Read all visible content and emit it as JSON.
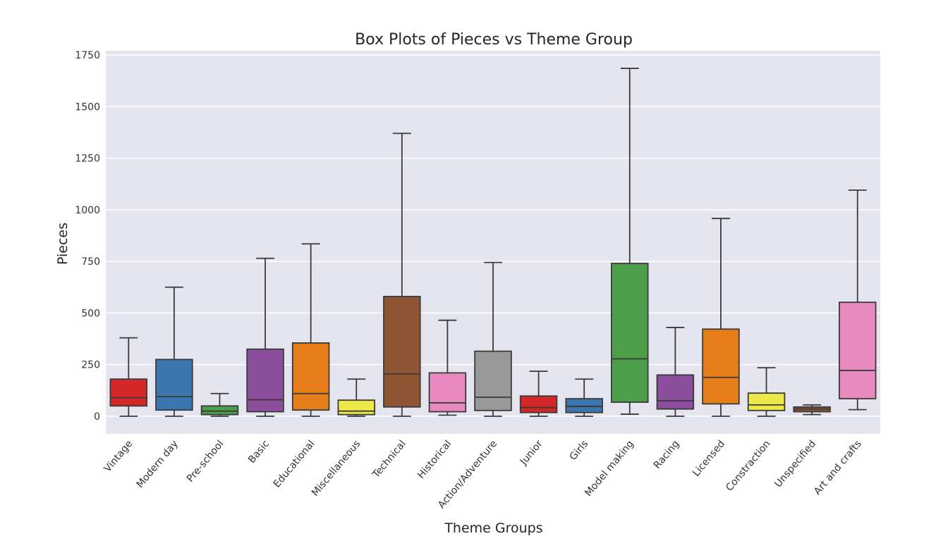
{
  "chart_data": {
    "type": "box",
    "title": "Box Plots of Pieces vs Theme Group",
    "xlabel": "Theme Groups",
    "ylabel": "Pieces",
    "ylim": [
      -80,
      1760
    ],
    "yticks": [
      0,
      250,
      500,
      750,
      1000,
      1250,
      1500,
      1750
    ],
    "grid": true,
    "categories": [
      "Vintage",
      "Modern day",
      "Pre-school",
      "Basic",
      "Educational",
      "Miscellaneous",
      "Technical",
      "Historical",
      "Action/Adventure",
      "Junior",
      "Girls",
      "Model making",
      "Racing",
      "Licensed",
      "Constraction",
      "Unspecified",
      "Art and crafts"
    ],
    "colors": [
      "#d62728",
      "#3b76af",
      "#4c9f48",
      "#8c4e9c",
      "#e67e1a",
      "#ece847",
      "#8f5533",
      "#e889c0",
      "#999999",
      "#d62728",
      "#3b76af",
      "#4c9f48",
      "#8c4e9c",
      "#e67e1a",
      "#ece847",
      "#8f5533",
      "#e889c0"
    ],
    "boxes": [
      {
        "whisker_low": 0,
        "q1": 50,
        "median": 90,
        "q3": 180,
        "whisker_high": 380
      },
      {
        "whisker_low": 0,
        "q1": 30,
        "median": 95,
        "q3": 275,
        "whisker_high": 625
      },
      {
        "whisker_low": 0,
        "q1": 8,
        "median": 25,
        "q3": 50,
        "whisker_high": 110
      },
      {
        "whisker_low": 0,
        "q1": 22,
        "median": 80,
        "q3": 325,
        "whisker_high": 765
      },
      {
        "whisker_low": 0,
        "q1": 30,
        "median": 110,
        "q3": 355,
        "whisker_high": 835
      },
      {
        "whisker_low": 0,
        "q1": 8,
        "median": 25,
        "q3": 78,
        "whisker_high": 180
      },
      {
        "whisker_low": 0,
        "q1": 45,
        "median": 205,
        "q3": 580,
        "whisker_high": 1370
      },
      {
        "whisker_low": 5,
        "q1": 22,
        "median": 65,
        "q3": 210,
        "whisker_high": 465
      },
      {
        "whisker_low": 0,
        "q1": 28,
        "median": 92,
        "q3": 315,
        "whisker_high": 745
      },
      {
        "whisker_low": 0,
        "q1": 18,
        "median": 42,
        "q3": 98,
        "whisker_high": 218
      },
      {
        "whisker_low": 0,
        "q1": 18,
        "median": 48,
        "q3": 85,
        "whisker_high": 180
      },
      {
        "whisker_low": 10,
        "q1": 68,
        "median": 278,
        "q3": 740,
        "whisker_high": 1685
      },
      {
        "whisker_low": 0,
        "q1": 35,
        "median": 75,
        "q3": 200,
        "whisker_high": 430
      },
      {
        "whisker_low": 0,
        "q1": 60,
        "median": 188,
        "q3": 422,
        "whisker_high": 958
      },
      {
        "whisker_low": 0,
        "q1": 28,
        "median": 55,
        "q3": 112,
        "whisker_high": 235
      },
      {
        "whisker_low": 8,
        "q1": 22,
        "median": 35,
        "q3": 45,
        "whisker_high": 55
      },
      {
        "whisker_low": 32,
        "q1": 85,
        "median": 222,
        "q3": 552,
        "whisker_high": 1095
      }
    ]
  }
}
